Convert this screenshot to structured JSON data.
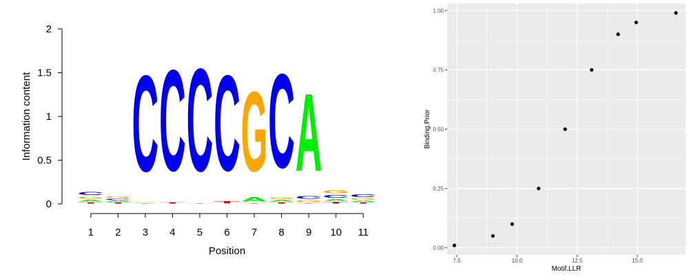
{
  "colors": {
    "A": "#00ee00",
    "C": "#0000ee",
    "G": "#ffa500",
    "T": "#ee0000",
    "panel_bg": "#ebebeb",
    "grid": "#ffffff",
    "point": "#000000"
  },
  "chart_data": [
    {
      "type": "sequence-logo",
      "xlabel": "Position",
      "ylabel": "Information content",
      "ylim": [
        0,
        2
      ],
      "yticks": [
        "0",
        "0.5",
        "1",
        "1.5",
        "2"
      ],
      "grid": false,
      "positions": [
        {
          "label": "1",
          "stack": [
            [
              "T",
              0.02
            ],
            [
              "A",
              0.03
            ],
            [
              "G",
              0.04
            ],
            [
              "C",
              0.06
            ]
          ]
        },
        {
          "label": "2",
          "stack": [
            [
              "T",
              0.02
            ],
            [
              "A",
              0.02
            ],
            [
              "C",
              0.02
            ],
            [
              "G",
              0.03
            ]
          ]
        },
        {
          "label": "3",
          "stack": [
            [
              "T",
              0.01
            ],
            [
              "A",
              0.01
            ],
            [
              "G",
              0.01
            ],
            [
              "C",
              1.76
            ]
          ]
        },
        {
          "label": "4",
          "stack": [
            [
              "T",
              0.02
            ],
            [
              "C",
              1.85
            ]
          ]
        },
        {
          "label": "5",
          "stack": [
            [
              "T",
              0.01
            ],
            [
              "C",
              1.88
            ]
          ]
        },
        {
          "label": "6",
          "stack": [
            [
              "T",
              0.04
            ],
            [
              "C",
              1.75
            ]
          ]
        },
        {
          "label": "7",
          "stack": [
            [
              "T",
              0.01
            ],
            [
              "A",
              0.08
            ],
            [
              "G",
              1.46
            ]
          ]
        },
        {
          "label": "8",
          "stack": [
            [
              "T",
              0.02
            ],
            [
              "A",
              0.03
            ],
            [
              "G",
              0.03
            ],
            [
              "C",
              1.72
            ]
          ]
        },
        {
          "label": "9",
          "stack": [
            [
              "T",
              0.01
            ],
            [
              "G",
              0.04
            ],
            [
              "C",
              0.05
            ],
            [
              "A",
              1.42
            ]
          ]
        },
        {
          "label": "10",
          "stack": [
            [
              "T",
              0.03
            ],
            [
              "A",
              0.03
            ],
            [
              "C",
              0.05
            ],
            [
              "G",
              0.06
            ]
          ]
        },
        {
          "label": "11",
          "stack": [
            [
              "T",
              0.02
            ],
            [
              "A",
              0.02
            ],
            [
              "G",
              0.03
            ],
            [
              "C",
              0.05
            ]
          ]
        }
      ]
    },
    {
      "type": "scatter",
      "xlabel": "Motif.LLR",
      "ylabel": "Binding.Prior",
      "xlim": [
        7.1,
        17.0
      ],
      "ylim": [
        -0.03,
        1.03
      ],
      "xticks": [
        "7.5",
        "10.0",
        "12.5",
        "15.0"
      ],
      "xtick_values": [
        7.5,
        10.0,
        12.5,
        15.0
      ],
      "yticks": [
        "0.00",
        "0.25",
        "0.50",
        "0.75",
        "1.00"
      ],
      "ytick_values": [
        0.0,
        0.25,
        0.5,
        0.75,
        1.0
      ],
      "grid": true,
      "x": [
        7.4,
        9.0,
        9.8,
        10.9,
        12.0,
        13.1,
        14.2,
        14.95,
        16.6
      ],
      "y": [
        0.01,
        0.05,
        0.1,
        0.25,
        0.5,
        0.75,
        0.9,
        0.95,
        0.99
      ]
    }
  ]
}
